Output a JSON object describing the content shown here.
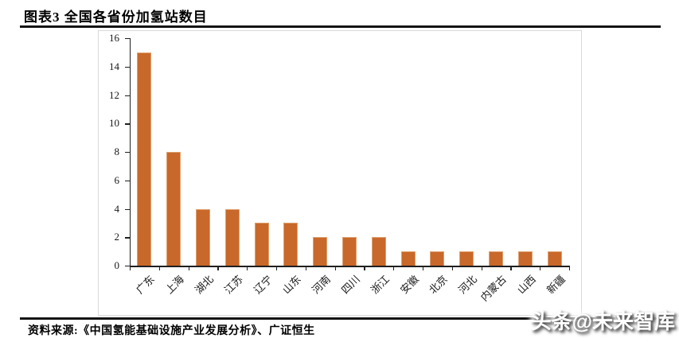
{
  "header": {
    "title": "图表3 全国各省份加氢站数目"
  },
  "chart_data": {
    "type": "bar",
    "title": "图表3 全国各省份加氢站数目",
    "categories": [
      "广东",
      "上海",
      "湖北",
      "江苏",
      "辽宁",
      "山东",
      "河南",
      "四川",
      "浙江",
      "安徽",
      "北京",
      "河北",
      "内蒙古",
      "山西",
      "新疆"
    ],
    "values": [
      15,
      8,
      4,
      4,
      3,
      3,
      2,
      2,
      2,
      1,
      1,
      1,
      1,
      1,
      1
    ],
    "xlabel": "",
    "ylabel": "",
    "ylim": [
      0,
      16
    ],
    "ytick_step": 2,
    "grid": false,
    "legend": false,
    "bar_color": "#c8682a",
    "bar_border_color": "#dfa170",
    "axis_color": "#1f1f1f"
  },
  "footer": {
    "source": "资料来源:《中国氢能基础设施产业发展分析》、广证恒生"
  },
  "watermark": {
    "text": "头条@未来智库"
  }
}
